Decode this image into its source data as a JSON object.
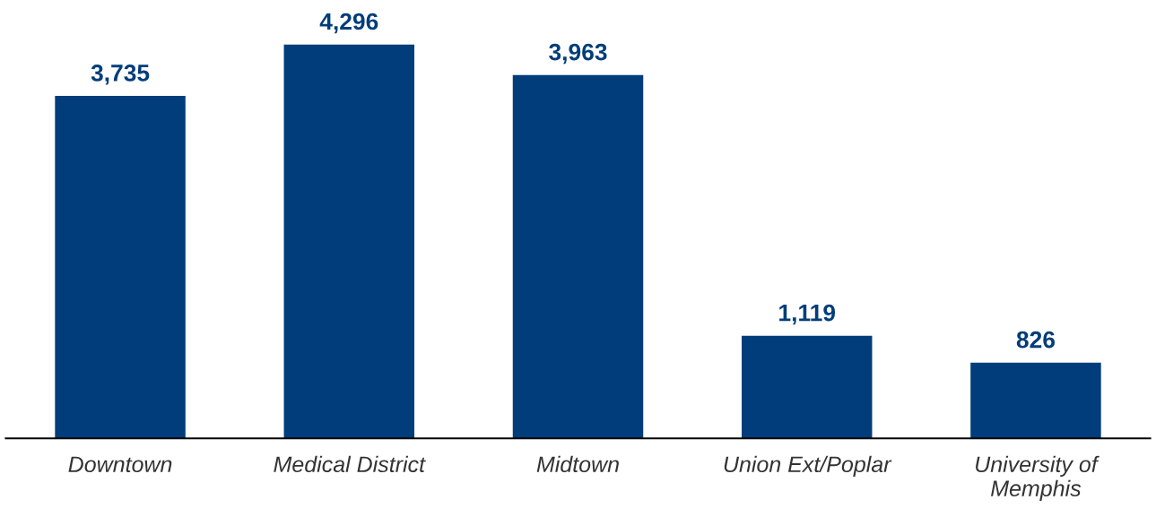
{
  "chart_data": {
    "type": "bar",
    "categories": [
      "Downtown",
      "Medical District",
      "Midtown",
      "Union Ext/Poplar",
      "University of\nMemphis"
    ],
    "values": [
      3735,
      4296,
      3963,
      1119,
      826
    ],
    "value_labels": [
      "3,735",
      "4,296",
      "3,963",
      "1,119",
      "826"
    ],
    "color": "#003d7a",
    "grid": false,
    "legend": false
  }
}
